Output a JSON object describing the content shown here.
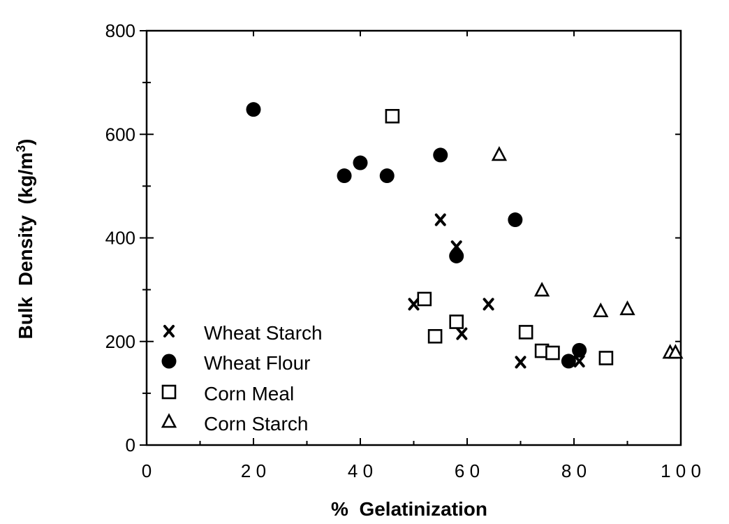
{
  "chart_data": {
    "type": "scatter",
    "xlabel": "%  Gelatinization",
    "ylabel": "Bulk  Density  (kg/m",
    "ylabel_sup": "3",
    "ylabel_close": ")",
    "xlim": [
      0,
      100
    ],
    "ylim": [
      0,
      800
    ],
    "x_ticks": [
      0,
      20,
      40,
      60,
      80,
      100
    ],
    "x_tick_labels": [
      "0",
      "2 0",
      "4 0",
      "6 0",
      "8 0",
      "1 0 0"
    ],
    "y_ticks": [
      0,
      200,
      400,
      600,
      800
    ],
    "y_tick_labels": [
      "0",
      "200",
      "400",
      "600",
      "800"
    ],
    "grid": false,
    "legend_position": "bottom-left",
    "series": [
      {
        "name": "Wheat Starch",
        "marker": "x",
        "points": [
          [
            50,
            272
          ],
          [
            55,
            435
          ],
          [
            58,
            383
          ],
          [
            59,
            215
          ],
          [
            64,
            272
          ],
          [
            70,
            160
          ],
          [
            81,
            162
          ]
        ]
      },
      {
        "name": "Wheat Flour",
        "marker": "filled-circle",
        "points": [
          [
            20,
            648
          ],
          [
            37,
            520
          ],
          [
            40,
            545
          ],
          [
            45,
            520
          ],
          [
            55,
            560
          ],
          [
            58,
            365
          ],
          [
            69,
            435
          ],
          [
            79,
            162
          ],
          [
            81,
            183
          ]
        ]
      },
      {
        "name": "Corn Meal",
        "marker": "open-square",
        "points": [
          [
            46,
            635
          ],
          [
            52,
            282
          ],
          [
            54,
            210
          ],
          [
            58,
            238
          ],
          [
            71,
            218
          ],
          [
            74,
            182
          ],
          [
            76,
            178
          ],
          [
            86,
            168
          ]
        ]
      },
      {
        "name": "Corn Starch",
        "marker": "open-triangle",
        "points": [
          [
            66,
            560
          ],
          [
            74,
            298
          ],
          [
            85,
            258
          ],
          [
            90,
            262
          ],
          [
            98,
            178
          ],
          [
            99,
            178
          ]
        ]
      }
    ]
  }
}
